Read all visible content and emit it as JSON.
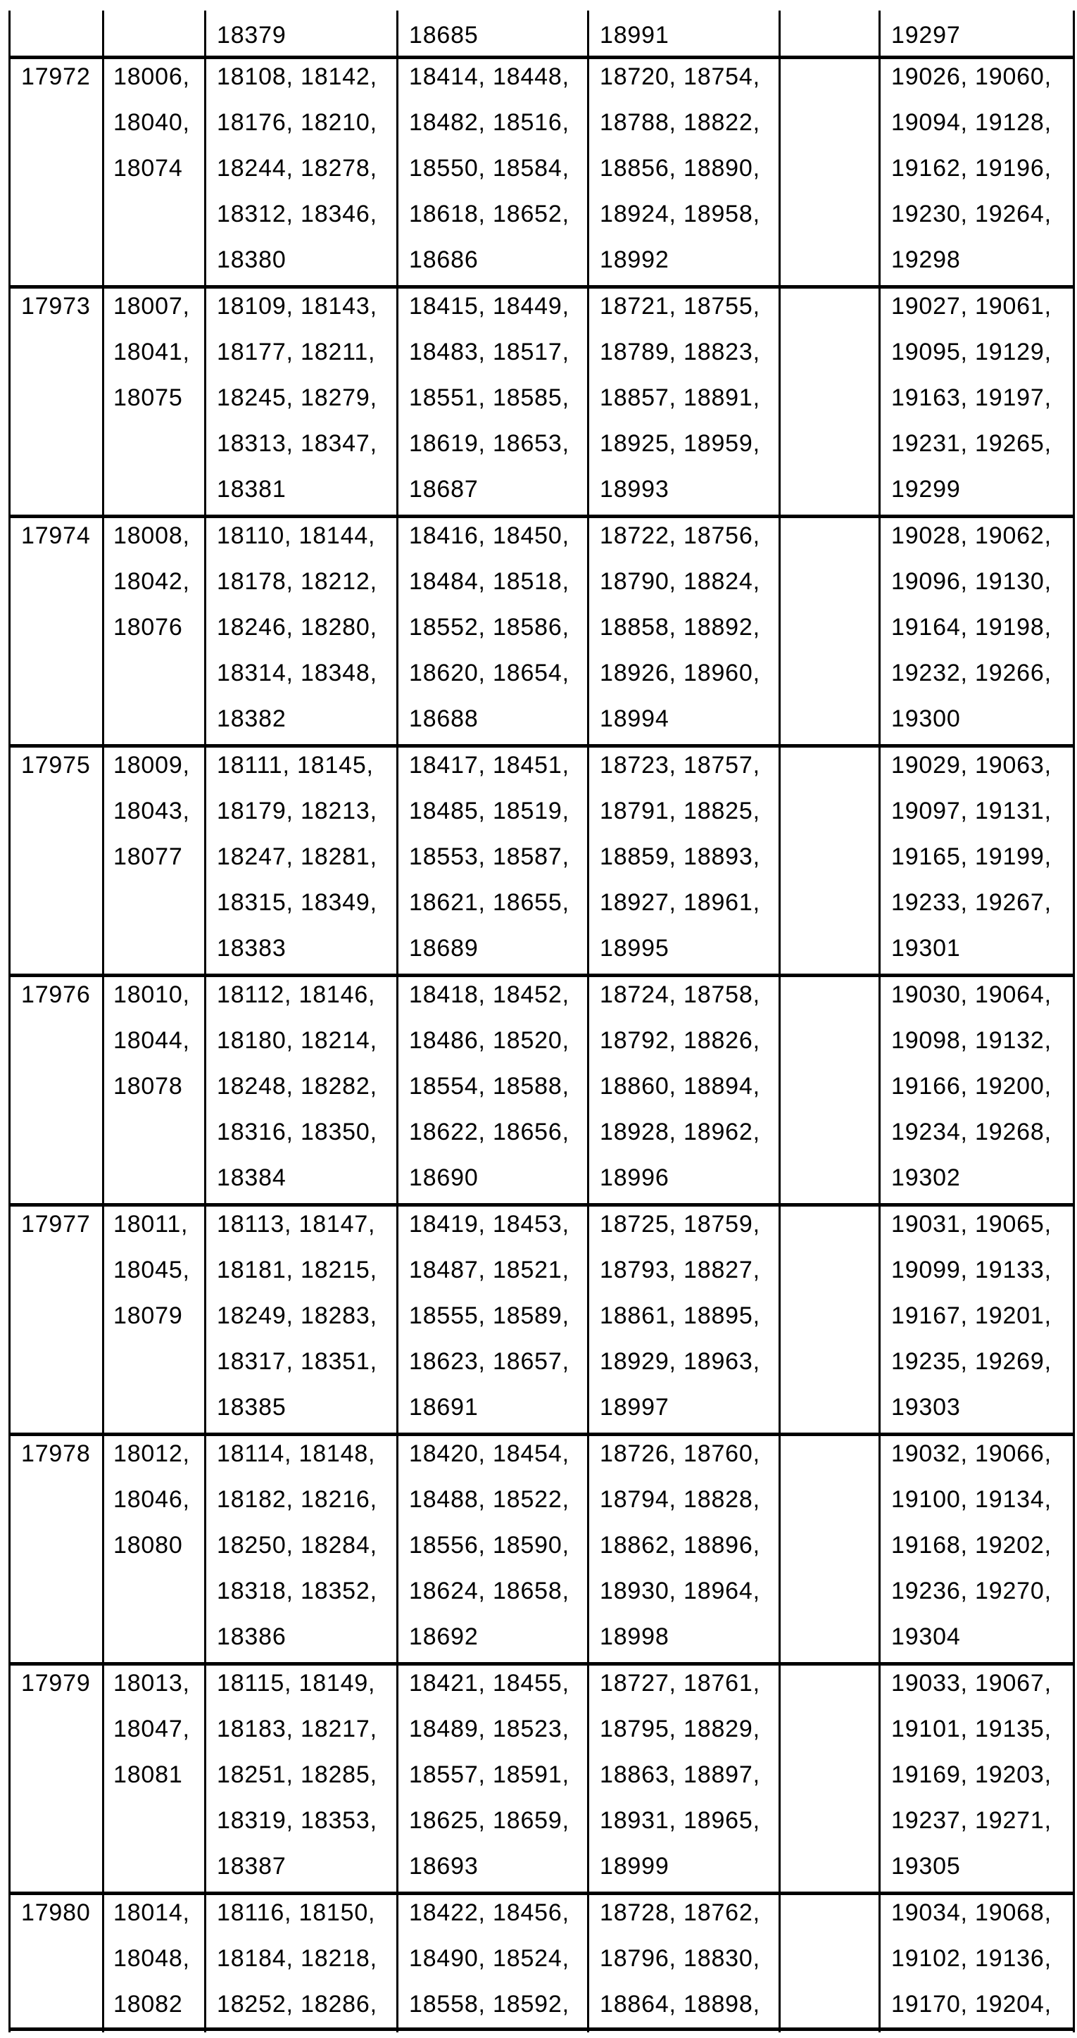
{
  "table": {
    "partial_top_row": [
      [],
      [],
      [
        "18379"
      ],
      [
        "18685"
      ],
      [
        "18991"
      ],
      [],
      [
        "19297"
      ]
    ],
    "rows": [
      [
        [
          "17972"
        ],
        [
          "18006,",
          "18040,",
          "18074"
        ],
        [
          "18108, 18142,",
          "18176, 18210,",
          "18244, 18278,",
          "18312, 18346,",
          "18380"
        ],
        [
          "18414, 18448,",
          "18482, 18516,",
          "18550, 18584,",
          "18618, 18652,",
          "18686"
        ],
        [
          "18720, 18754,",
          "18788, 18822,",
          "18856, 18890,",
          "18924, 18958,",
          "18992"
        ],
        [],
        [
          "19026, 19060,",
          "19094, 19128,",
          "19162, 19196,",
          "19230, 19264,",
          "19298"
        ]
      ],
      [
        [
          "17973"
        ],
        [
          "18007,",
          "18041,",
          "18075"
        ],
        [
          "18109, 18143,",
          "18177, 18211,",
          "18245, 18279,",
          "18313, 18347,",
          "18381"
        ],
        [
          "18415, 18449,",
          "18483, 18517,",
          "18551, 18585,",
          "18619, 18653,",
          "18687"
        ],
        [
          "18721, 18755,",
          "18789, 18823,",
          "18857, 18891,",
          "18925, 18959,",
          "18993"
        ],
        [],
        [
          "19027, 19061,",
          "19095, 19129,",
          "19163, 19197,",
          "19231, 19265,",
          "19299"
        ]
      ],
      [
        [
          "17974"
        ],
        [
          "18008,",
          "18042,",
          "18076"
        ],
        [
          "18110, 18144,",
          "18178, 18212,",
          "18246, 18280,",
          "18314, 18348,",
          "18382"
        ],
        [
          "18416, 18450,",
          "18484, 18518,",
          "18552, 18586,",
          "18620, 18654,",
          "18688"
        ],
        [
          "18722, 18756,",
          "18790, 18824,",
          "18858, 18892,",
          "18926, 18960,",
          "18994"
        ],
        [],
        [
          "19028, 19062,",
          "19096, 19130,",
          "19164, 19198,",
          "19232, 19266,",
          "19300"
        ]
      ],
      [
        [
          "17975"
        ],
        [
          "18009,",
          "18043,",
          "18077"
        ],
        [
          "18111, 18145,",
          "18179, 18213,",
          "18247, 18281,",
          "18315, 18349,",
          "18383"
        ],
        [
          "18417, 18451,",
          "18485, 18519,",
          "18553, 18587,",
          "18621, 18655,",
          "18689"
        ],
        [
          "18723, 18757,",
          "18791, 18825,",
          "18859, 18893,",
          "18927, 18961,",
          "18995"
        ],
        [],
        [
          "19029, 19063,",
          "19097, 19131,",
          "19165, 19199,",
          "19233, 19267,",
          "19301"
        ]
      ],
      [
        [
          "17976"
        ],
        [
          "18010,",
          "18044,",
          "18078"
        ],
        [
          "18112, 18146,",
          "18180, 18214,",
          "18248, 18282,",
          "18316, 18350,",
          "18384"
        ],
        [
          "18418, 18452,",
          "18486, 18520,",
          "18554, 18588,",
          "18622, 18656,",
          "18690"
        ],
        [
          "18724, 18758,",
          "18792, 18826,",
          "18860, 18894,",
          "18928, 18962,",
          "18996"
        ],
        [],
        [
          "19030, 19064,",
          "19098, 19132,",
          "19166, 19200,",
          "19234, 19268,",
          "19302"
        ]
      ],
      [
        [
          "17977"
        ],
        [
          "18011,",
          "18045,",
          "18079"
        ],
        [
          "18113, 18147,",
          "18181, 18215,",
          "18249, 18283,",
          "18317, 18351,",
          "18385"
        ],
        [
          "18419, 18453,",
          "18487, 18521,",
          "18555, 18589,",
          "18623, 18657,",
          "18691"
        ],
        [
          "18725, 18759,",
          "18793, 18827,",
          "18861, 18895,",
          "18929, 18963,",
          "18997"
        ],
        [],
        [
          "19031, 19065,",
          "19099, 19133,",
          "19167, 19201,",
          "19235, 19269,",
          "19303"
        ]
      ],
      [
        [
          "17978"
        ],
        [
          "18012,",
          "18046,",
          "18080"
        ],
        [
          "18114, 18148,",
          "18182, 18216,",
          "18250, 18284,",
          "18318, 18352,",
          "18386"
        ],
        [
          "18420, 18454,",
          "18488, 18522,",
          "18556, 18590,",
          "18624, 18658,",
          "18692"
        ],
        [
          "18726, 18760,",
          "18794, 18828,",
          "18862, 18896,",
          "18930, 18964,",
          "18998"
        ],
        [],
        [
          "19032, 19066,",
          "19100, 19134,",
          "19168, 19202,",
          "19236, 19270,",
          "19304"
        ]
      ],
      [
        [
          "17979"
        ],
        [
          "18013,",
          "18047,",
          "18081"
        ],
        [
          "18115, 18149,",
          "18183, 18217,",
          "18251, 18285,",
          "18319, 18353,",
          "18387"
        ],
        [
          "18421, 18455,",
          "18489, 18523,",
          "18557, 18591,",
          "18625, 18659,",
          "18693"
        ],
        [
          "18727, 18761,",
          "18795, 18829,",
          "18863, 18897,",
          "18931, 18965,",
          "18999"
        ],
        [],
        [
          "19033, 19067,",
          "19101, 19135,",
          "19169, 19203,",
          "19237, 19271,",
          "19305"
        ]
      ],
      [
        [
          "17980"
        ],
        [
          "18014,",
          "18048,",
          "18082"
        ],
        [
          "18116, 18150,",
          "18184, 18218,",
          "18252, 18286,"
        ],
        [
          "18422, 18456,",
          "18490, 18524,",
          "18558, 18592,"
        ],
        [
          "18728, 18762,",
          "18796, 18830,",
          "18864, 18898,"
        ],
        [],
        [
          "19034, 19068,",
          "19102, 19136,",
          "19170, 19204,"
        ]
      ]
    ]
  }
}
